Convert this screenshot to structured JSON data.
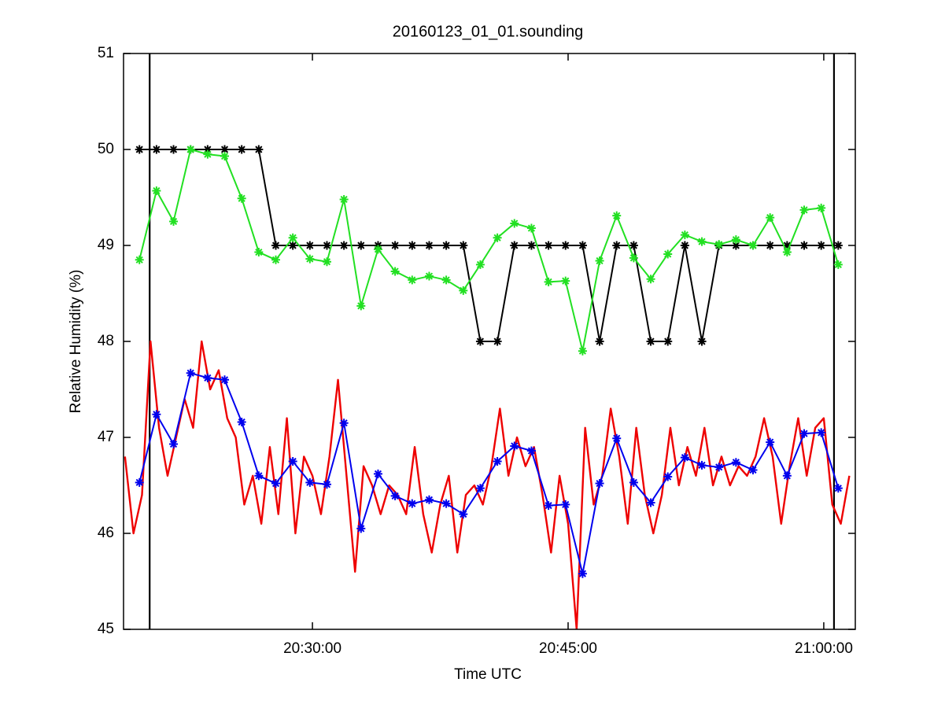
{
  "chart_data": {
    "type": "line",
    "title": "20160123_01_01.sounding",
    "x_label": "Time UTC",
    "y_label": "Relative Humidity (%)",
    "xlim": [
      "20:18:55",
      "21:01:51"
    ],
    "xticks": [
      "20:30:00",
      "20:45:00",
      "21:00:00"
    ],
    "ylim": [
      45,
      51
    ],
    "yticks": [
      45,
      46,
      47,
      48,
      49,
      50,
      51
    ],
    "grid": false,
    "vertical_lines": [
      "20:20:27",
      "21:00:36"
    ],
    "x": [
      "20:19:51",
      "20:20:51",
      "20:21:51",
      "20:22:51",
      "20:23:51",
      "20:24:51",
      "20:25:51",
      "20:26:51",
      "20:27:51",
      "20:28:51",
      "20:29:51",
      "20:30:51",
      "20:31:51",
      "20:32:51",
      "20:33:51",
      "20:34:51",
      "20:35:51",
      "20:36:51",
      "20:37:51",
      "20:38:51",
      "20:39:51",
      "20:40:51",
      "20:41:51",
      "20:42:51",
      "20:43:51",
      "20:44:51",
      "20:45:51",
      "20:46:51",
      "20:47:51",
      "20:48:51",
      "20:49:51",
      "20:50:51",
      "20:51:51",
      "20:52:51",
      "20:53:51",
      "20:54:51",
      "20:55:51",
      "20:56:51",
      "20:57:51",
      "20:58:51",
      "20:59:51",
      "21:00:51"
    ],
    "series": [
      {
        "color": "#000000",
        "marker": "asterisk",
        "values": [
          50,
          50,
          50,
          50,
          50,
          50,
          50,
          50,
          49,
          49,
          49,
          49,
          49,
          49,
          49,
          49,
          49,
          49,
          49,
          49,
          48,
          48,
          49,
          49,
          49,
          49,
          49,
          48,
          49,
          49,
          48,
          48,
          49,
          48,
          49,
          49,
          49,
          49,
          49,
          49,
          49,
          49
        ]
      },
      {
        "color": "#22e022",
        "marker": "asterisk",
        "values": [
          48.85,
          49.57,
          49.25,
          50.0,
          49.95,
          49.93,
          49.49,
          48.93,
          48.85,
          49.08,
          48.86,
          48.83,
          49.48,
          48.37,
          48.96,
          48.73,
          48.64,
          48.68,
          48.64,
          48.53,
          48.8,
          49.08,
          49.23,
          49.18,
          48.62,
          48.63,
          47.9,
          48.84,
          49.31,
          48.87,
          48.65,
          48.91,
          49.11,
          49.04,
          49.01,
          49.06,
          49.0,
          49.29,
          48.93,
          49.37,
          49.39,
          48.8
        ]
      },
      {
        "color": "#0000ee",
        "marker": "asterisk",
        "values": [
          46.53,
          47.24,
          46.93,
          47.67,
          47.62,
          47.6,
          47.16,
          46.6,
          46.52,
          46.75,
          46.53,
          46.51,
          47.15,
          46.05,
          46.62,
          46.39,
          46.31,
          46.35,
          46.31,
          46.2,
          46.47,
          46.75,
          46.91,
          46.86,
          46.29,
          46.3,
          45.58,
          46.52,
          46.99,
          46.53,
          46.32,
          46.59,
          46.79,
          46.71,
          46.69,
          46.74,
          46.66,
          46.95,
          46.6,
          47.04,
          47.05,
          46.47
        ]
      },
      {
        "color": "#ee0000",
        "marker": null,
        "x": [
          "20:19:00",
          "20:19:30",
          "20:20:00",
          "20:20:30",
          "20:21:00",
          "20:21:30",
          "20:22:00",
          "20:22:30",
          "20:23:00",
          "20:23:30",
          "20:24:00",
          "20:24:30",
          "20:25:00",
          "20:25:30",
          "20:26:00",
          "20:26:30",
          "20:27:00",
          "20:27:30",
          "20:28:00",
          "20:28:30",
          "20:29:00",
          "20:29:30",
          "20:30:00",
          "20:30:30",
          "20:31:00",
          "20:31:30",
          "20:32:00",
          "20:32:30",
          "20:33:00",
          "20:33:30",
          "20:34:00",
          "20:34:30",
          "20:35:00",
          "20:35:30",
          "20:36:00",
          "20:36:30",
          "20:37:00",
          "20:37:30",
          "20:38:00",
          "20:38:30",
          "20:39:00",
          "20:39:30",
          "20:40:00",
          "20:40:30",
          "20:41:00",
          "20:41:30",
          "20:42:00",
          "20:42:30",
          "20:43:00",
          "20:43:30",
          "20:44:00",
          "20:44:30",
          "20:45:00",
          "20:45:30",
          "20:46:00",
          "20:46:30",
          "20:47:00",
          "20:47:30",
          "20:48:00",
          "20:48:30",
          "20:49:00",
          "20:49:30",
          "20:50:00",
          "20:50:30",
          "20:51:00",
          "20:51:30",
          "20:52:00",
          "20:52:30",
          "20:53:00",
          "20:53:30",
          "20:54:00",
          "20:54:30",
          "20:55:00",
          "20:55:30",
          "20:56:00",
          "20:56:30",
          "20:57:00",
          "20:57:30",
          "20:58:00",
          "20:58:30",
          "20:59:00",
          "20:59:30",
          "21:00:00",
          "21:00:30",
          "21:01:00",
          "21:01:30"
        ],
        "values": [
          46.8,
          46.0,
          46.4,
          48.0,
          47.1,
          46.6,
          47.0,
          47.4,
          47.1,
          48.0,
          47.5,
          47.7,
          47.2,
          47.0,
          46.3,
          46.6,
          46.1,
          46.9,
          46.2,
          47.2,
          46.0,
          46.8,
          46.6,
          46.2,
          46.8,
          47.6,
          46.6,
          45.6,
          46.7,
          46.5,
          46.2,
          46.5,
          46.4,
          46.2,
          46.9,
          46.2,
          45.8,
          46.3,
          46.6,
          45.8,
          46.4,
          46.5,
          46.3,
          46.7,
          47.3,
          46.6,
          47.0,
          46.7,
          46.9,
          46.4,
          45.8,
          46.6,
          46.1,
          45.0,
          47.1,
          46.3,
          46.6,
          47.3,
          46.8,
          46.1,
          47.1,
          46.4,
          46.0,
          46.4,
          47.1,
          46.5,
          46.9,
          46.6,
          47.1,
          46.5,
          46.8,
          46.5,
          46.7,
          46.6,
          46.8,
          47.2,
          46.8,
          46.1,
          46.7,
          47.2,
          46.6,
          47.1,
          47.2,
          46.3,
          46.1,
          46.6
        ]
      }
    ]
  }
}
